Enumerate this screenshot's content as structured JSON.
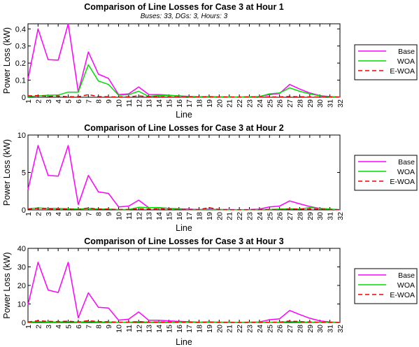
{
  "chart_data": [
    {
      "type": "line",
      "title": "Comparison of Line Losses for Case 3 at Hour 1",
      "subtitle": "Buses: 33, DGs: 3, Hours: 3",
      "xlabel": "Line",
      "ylabel": "Power Loss (kW)",
      "ylim": [
        0,
        0.43
      ],
      "yticks": [
        0,
        0.1,
        0.2,
        0.3,
        0.4
      ],
      "yticklabels": [
        "0",
        "0.1",
        "0.2",
        "0.3",
        "0.4"
      ],
      "xlim": [
        1,
        32
      ],
      "xticks": [
        1,
        2,
        3,
        4,
        5,
        6,
        7,
        8,
        9,
        10,
        11,
        12,
        13,
        14,
        15,
        16,
        17,
        18,
        19,
        20,
        21,
        22,
        23,
        24,
        25,
        26,
        27,
        28,
        29,
        30,
        31,
        32
      ],
      "legend_location": "right-outside",
      "series": [
        {
          "name": "Base",
          "color": "#ff00ff",
          "dash": "solid",
          "values": [
            0.105,
            0.4,
            0.22,
            0.217,
            0.43,
            0.03,
            0.265,
            0.135,
            0.11,
            0.015,
            0.02,
            0.06,
            0.016,
            0.015,
            0.012,
            0.008,
            0.005,
            0.003,
            0.004,
            0.002,
            0.002,
            0.001,
            0.003,
            0.004,
            0.015,
            0.022,
            0.075,
            0.048,
            0.025,
            0.01,
            0.004,
            0.001
          ]
        },
        {
          "name": "WOA",
          "color": "#00dd00",
          "dash": "solid",
          "values": [
            0.003,
            0.008,
            0.012,
            0.013,
            0.03,
            0.03,
            0.19,
            0.095,
            0.075,
            0.012,
            0.015,
            0.035,
            0.005,
            0.01,
            0.01,
            0.008,
            0.004,
            0.002,
            0.002,
            0.002,
            0.002,
            0.001,
            0.002,
            0.004,
            0.02,
            0.025,
            0.055,
            0.035,
            0.02,
            0.008,
            0.003,
            0.001
          ]
        },
        {
          "name": "E-WOA",
          "color": "#ee0000",
          "dash": "dashed",
          "values": [
            0.008,
            0.01,
            0.005,
            0.007,
            0.003,
            0.003,
            0.015,
            0.004,
            0.003,
            0.002,
            0.003,
            0.008,
            0.003,
            0.003,
            0.002,
            0.002,
            0.001,
            0.001,
            0.002,
            0.001,
            0.001,
            0.001,
            0.001,
            0.001,
            0.002,
            0.002,
            0.004,
            0.003,
            0.002,
            0.001,
            0.001,
            0.001
          ]
        }
      ]
    },
    {
      "type": "line",
      "title": "Comparison of Line Losses for Case 3 at Hour 2",
      "xlabel": "Line",
      "ylabel": "Power Loss (kW)",
      "ylim": [
        0,
        10
      ],
      "yticks": [
        0,
        5,
        10
      ],
      "yticklabels": [
        "0",
        "5",
        "10"
      ],
      "xlim": [
        1,
        32
      ],
      "xticks": [
        1,
        2,
        3,
        4,
        5,
        6,
        7,
        8,
        9,
        10,
        11,
        12,
        13,
        14,
        15,
        16,
        17,
        18,
        19,
        20,
        21,
        22,
        23,
        24,
        25,
        26,
        27,
        28,
        29,
        30,
        31,
        32
      ],
      "legend_location": "right-outside",
      "series": [
        {
          "name": "Base",
          "color": "#ff00ff",
          "dash": "solid",
          "values": [
            2.7,
            8.6,
            4.6,
            4.5,
            8.6,
            0.7,
            4.6,
            2.4,
            2.2,
            0.4,
            0.5,
            1.3,
            0.3,
            0.3,
            0.2,
            0.15,
            0.1,
            0.05,
            0.1,
            0.05,
            0.05,
            0.03,
            0.05,
            0.1,
            0.4,
            0.5,
            1.2,
            0.8,
            0.45,
            0.2,
            0.1,
            0.02
          ]
        },
        {
          "name": "WOA",
          "color": "#00dd00",
          "dash": "solid",
          "values": [
            0.15,
            0.25,
            0.2,
            0.2,
            0.15,
            0.1,
            0.2,
            0.1,
            0.1,
            0.05,
            0.05,
            0.35,
            0.3,
            0.3,
            0.2,
            0.1,
            0.05,
            0.05,
            0.05,
            0.05,
            0.03,
            0.03,
            0.03,
            0.05,
            0.05,
            0.1,
            0.15,
            0.1,
            0.3,
            0.2,
            0.1,
            0.02
          ]
        },
        {
          "name": "E-WOA",
          "color": "#ee0000",
          "dash": "dashed",
          "values": [
            0.1,
            0.2,
            0.15,
            0.1,
            0.1,
            0.05,
            0.25,
            0.1,
            0.1,
            0.05,
            0.05,
            0.15,
            0.1,
            0.15,
            0.1,
            0.05,
            0.05,
            0.05,
            0.3,
            0.05,
            0.03,
            0.03,
            0.03,
            0.05,
            0.05,
            0.05,
            0.1,
            0.1,
            0.1,
            0.1,
            0.05,
            0.02
          ]
        }
      ]
    },
    {
      "type": "line",
      "title": "Comparison of Line Losses for Case 3 at Hour 3",
      "xlabel": "Line",
      "ylabel": "Power Loss (kW)",
      "ylim": [
        0,
        40
      ],
      "yticks": [
        0,
        10,
        20,
        30,
        40
      ],
      "yticklabels": [
        "0",
        "10",
        "20",
        "30",
        "40"
      ],
      "xlim": [
        1,
        32
      ],
      "xticks": [
        1,
        2,
        3,
        4,
        5,
        6,
        7,
        8,
        9,
        10,
        11,
        12,
        13,
        14,
        15,
        16,
        17,
        18,
        19,
        20,
        21,
        22,
        23,
        24,
        25,
        26,
        27,
        28,
        29,
        30,
        31,
        32
      ],
      "legend_location": "right-outside",
      "series": [
        {
          "name": "Base",
          "color": "#ff00ff",
          "dash": "solid",
          "values": [
            9.5,
            32.5,
            17.5,
            16.2,
            32.5,
            2.5,
            16.0,
            8.2,
            7.8,
            1.3,
            1.8,
            5.7,
            1.2,
            1.2,
            0.9,
            0.6,
            0.4,
            0.2,
            0.3,
            0.2,
            0.2,
            0.1,
            0.2,
            0.3,
            1.5,
            2.0,
            6.5,
            4.3,
            2.3,
            0.9,
            0.3,
            0.05
          ]
        },
        {
          "name": "WOA",
          "color": "#00dd00",
          "dash": "solid",
          "values": [
            0.2,
            0.5,
            0.3,
            0.3,
            0.5,
            0.2,
            0.5,
            0.3,
            0.3,
            0.1,
            0.1,
            0.4,
            0.2,
            0.3,
            0.2,
            0.1,
            0.1,
            0.05,
            0.1,
            0.05,
            0.05,
            0.05,
            0.05,
            0.05,
            0.1,
            0.2,
            0.5,
            0.3,
            0.2,
            0.1,
            0.05,
            0.02
          ]
        },
        {
          "name": "E-WOA",
          "color": "#ee0000",
          "dash": "dashed",
          "values": [
            0.3,
            1.0,
            0.6,
            0.5,
            0.7,
            0.3,
            1.0,
            0.5,
            0.4,
            0.2,
            0.2,
            0.5,
            0.2,
            0.3,
            0.2,
            0.1,
            0.1,
            0.05,
            0.3,
            0.05,
            0.05,
            0.05,
            0.05,
            0.05,
            0.1,
            0.2,
            0.8,
            0.5,
            0.3,
            0.1,
            0.05,
            0.02
          ]
        }
      ]
    }
  ]
}
